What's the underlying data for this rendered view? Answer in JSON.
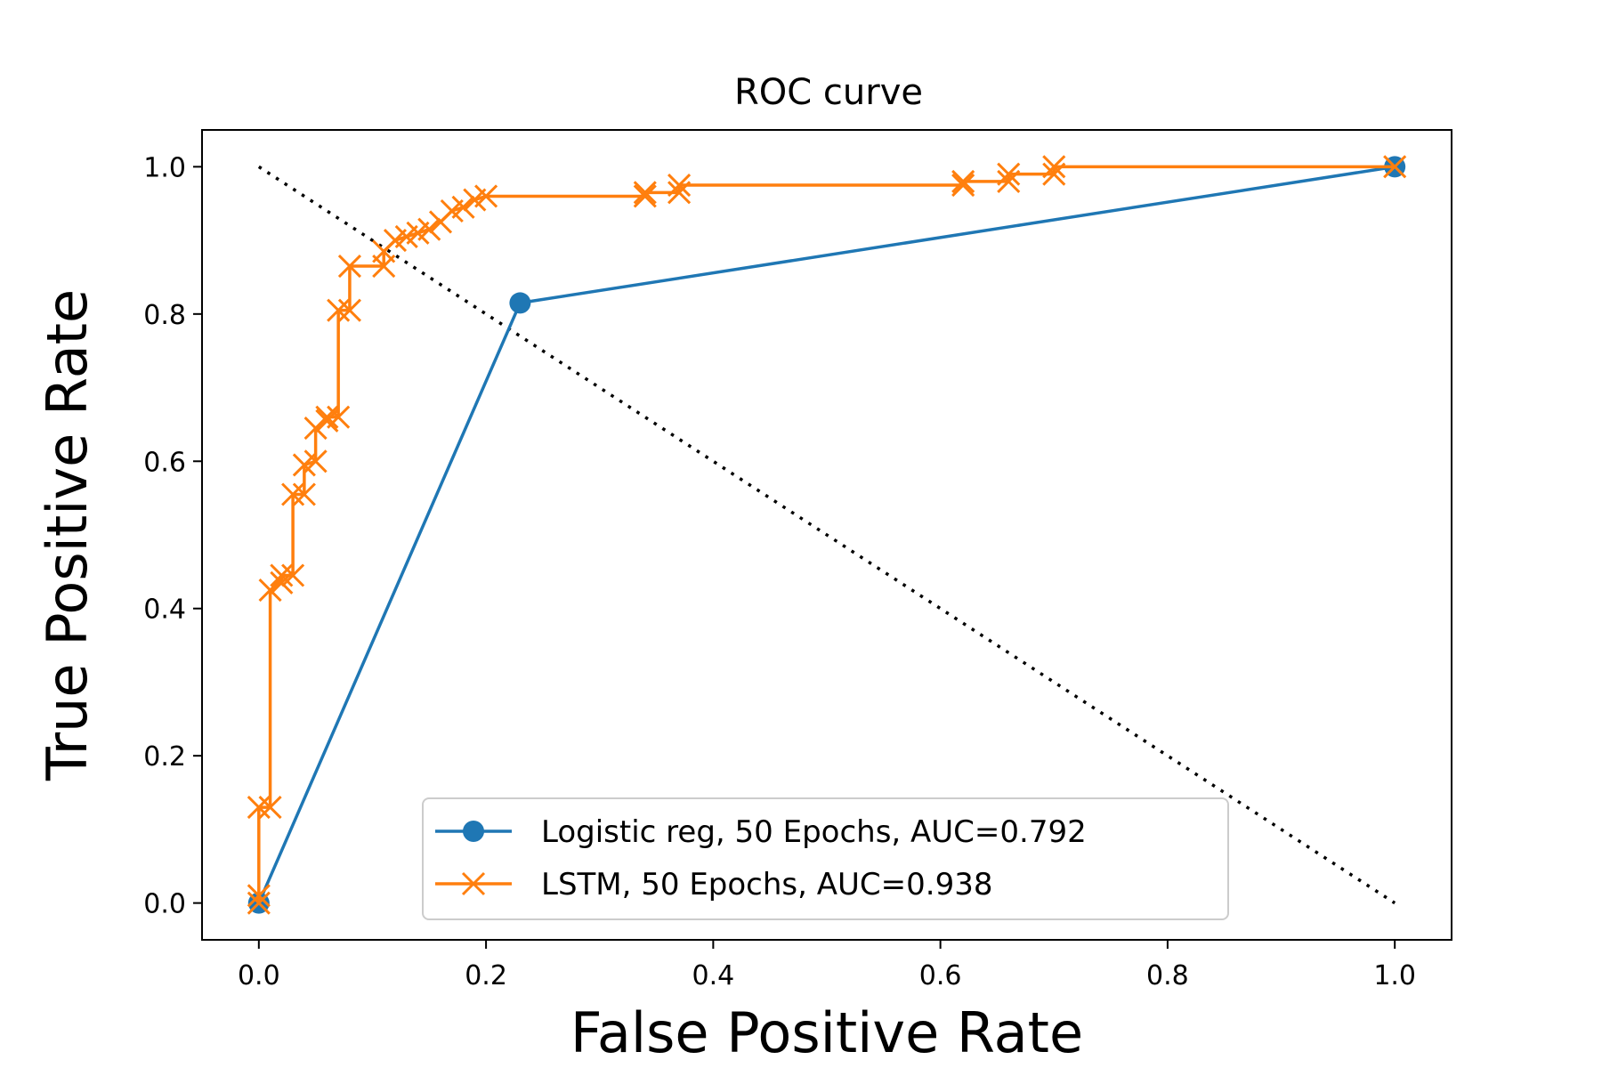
{
  "chart_data": {
    "type": "line",
    "title": "ROC curve",
    "xlabel": "False Positive Rate",
    "ylabel": "True Positive Rate",
    "xlim": [
      -0.05,
      1.05
    ],
    "ylim": [
      -0.05,
      1.05
    ],
    "xticks": [
      0.0,
      0.2,
      0.4,
      0.6,
      0.8,
      1.0
    ],
    "yticks": [
      0.0,
      0.2,
      0.4,
      0.6,
      0.8,
      1.0
    ],
    "xtick_labels": [
      "0.0",
      "0.2",
      "0.4",
      "0.6",
      "0.8",
      "1.0"
    ],
    "ytick_labels": [
      "0.0",
      "0.2",
      "0.4",
      "0.6",
      "0.8",
      "1.0"
    ],
    "grid": false,
    "legend_position": "lower-right",
    "reference_line": {
      "style": "dotted",
      "color": "#000000",
      "x": [
        0.0,
        1.0
      ],
      "y": [
        1.0,
        0.0
      ]
    },
    "series": [
      {
        "name": "Logistic reg, 50 Epochs, AUC=0.792",
        "color": "#1f77b4",
        "marker": "circle",
        "x": [
          0.0,
          0.23,
          1.0
        ],
        "y": [
          0.0,
          0.815,
          1.0
        ]
      },
      {
        "name": "LSTM, 50 Epochs, AUC=0.938",
        "color": "#ff7f0e",
        "marker": "x",
        "x": [
          0.0,
          0.0,
          0.0,
          0.01,
          0.01,
          0.02,
          0.02,
          0.03,
          0.03,
          0.04,
          0.04,
          0.05,
          0.05,
          0.06,
          0.06,
          0.07,
          0.07,
          0.08,
          0.08,
          0.11,
          0.11,
          0.12,
          0.13,
          0.14,
          0.15,
          0.16,
          0.17,
          0.18,
          0.19,
          0.2,
          0.34,
          0.34,
          0.37,
          0.37,
          0.62,
          0.62,
          0.66,
          0.66,
          0.7,
          0.7,
          1.0
        ],
        "y": [
          0.0,
          0.01,
          0.13,
          0.13,
          0.425,
          0.435,
          0.445,
          0.445,
          0.555,
          0.555,
          0.595,
          0.6,
          0.645,
          0.655,
          0.66,
          0.66,
          0.805,
          0.805,
          0.865,
          0.865,
          0.885,
          0.9,
          0.905,
          0.91,
          0.915,
          0.925,
          0.94,
          0.945,
          0.955,
          0.96,
          0.96,
          0.965,
          0.965,
          0.975,
          0.975,
          0.98,
          0.98,
          0.99,
          0.99,
          1.0,
          1.0
        ]
      }
    ]
  }
}
